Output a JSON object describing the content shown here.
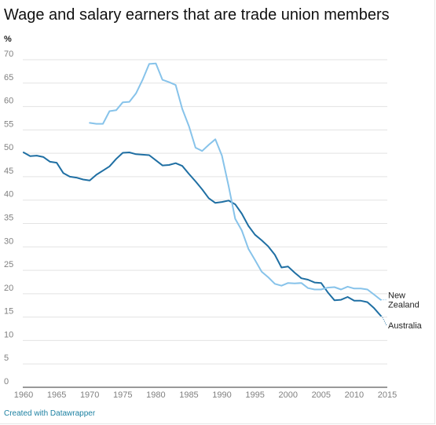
{
  "header": {
    "title": "Wage and salary earners that are trade union members"
  },
  "footer": {
    "credit": "Created with Datawrapper"
  },
  "chart_data": {
    "type": "line",
    "title": "Wage and salary earners that are trade union members",
    "xlabel": "",
    "ylabel": "%",
    "xlim": [
      1960,
      2015
    ],
    "ylim": [
      0,
      70
    ],
    "x_ticks": [
      1960,
      1965,
      1970,
      1975,
      1980,
      1985,
      1990,
      1995,
      2000,
      2005,
      2010,
      2015
    ],
    "y_ticks": [
      0,
      5,
      10,
      15,
      20,
      25,
      30,
      35,
      40,
      45,
      50,
      55,
      60,
      65,
      70
    ],
    "grid": "horizontal",
    "legend": "direct labels at line ends",
    "series": [
      {
        "name": "Australia",
        "label_lines": [
          "Australia"
        ],
        "color": "#1f6fa3",
        "x": [
          1960,
          1961,
          1962,
          1963,
          1964,
          1965,
          1966,
          1967,
          1968,
          1969,
          1970,
          1971,
          1972,
          1973,
          1974,
          1975,
          1976,
          1977,
          1978,
          1979,
          1980,
          1981,
          1982,
          1983,
          1984,
          1985,
          1986,
          1987,
          1988,
          1989,
          1990,
          1991,
          1992,
          1993,
          1994,
          1995,
          1996,
          1997,
          1998,
          1999,
          2000,
          2001,
          2002,
          2003,
          2004,
          2005,
          2006,
          2007,
          2008,
          2009,
          2010,
          2011,
          2012,
          2013,
          2014
        ],
        "values": [
          50.2,
          49.4,
          49.5,
          49.2,
          48.2,
          48.0,
          45.8,
          45.0,
          44.8,
          44.4,
          44.2,
          45.4,
          46.3,
          47.2,
          48.8,
          50.1,
          50.2,
          49.8,
          49.7,
          49.6,
          48.5,
          47.4,
          47.5,
          47.9,
          47.3,
          45.6,
          44.0,
          42.3,
          40.4,
          39.4,
          39.6,
          39.9,
          39.1,
          37.1,
          34.5,
          32.6,
          31.4,
          30.1,
          28.3,
          25.6,
          25.8,
          24.5,
          23.3,
          23.0,
          22.4,
          22.3,
          20.3,
          18.6,
          18.7,
          19.3,
          18.5,
          18.5,
          18.2,
          16.9,
          15.3
        ]
      },
      {
        "name": "New Zealand",
        "label_lines": [
          "New",
          "Zealand"
        ],
        "color": "#87c3ea",
        "x": [
          1970,
          1971,
          1972,
          1973,
          1974,
          1975,
          1976,
          1977,
          1978,
          1979,
          1980,
          1981,
          1982,
          1983,
          1984,
          1985,
          1986,
          1987,
          1988,
          1989,
          1990,
          1991,
          1992,
          1993,
          1994,
          1995,
          1996,
          1997,
          1998,
          1999,
          2000,
          2001,
          2002,
          2003,
          2004,
          2005,
          2006,
          2007,
          2008,
          2009,
          2010,
          2011,
          2012,
          2013,
          2014
        ],
        "values": [
          56.5,
          56.3,
          56.3,
          59.0,
          59.2,
          60.9,
          61.0,
          62.8,
          65.7,
          69.1,
          69.2,
          65.7,
          65.2,
          64.6,
          59.5,
          55.8,
          51.2,
          50.5,
          51.8,
          53.0,
          49.5,
          43.0,
          36.0,
          33.5,
          29.6,
          27.2,
          24.7,
          23.5,
          22.1,
          21.7,
          22.3,
          22.2,
          22.3,
          21.2,
          20.9,
          20.9,
          21.3,
          21.4,
          20.9,
          21.5,
          21.1,
          21.1,
          20.9,
          19.8,
          18.7
        ]
      }
    ]
  }
}
